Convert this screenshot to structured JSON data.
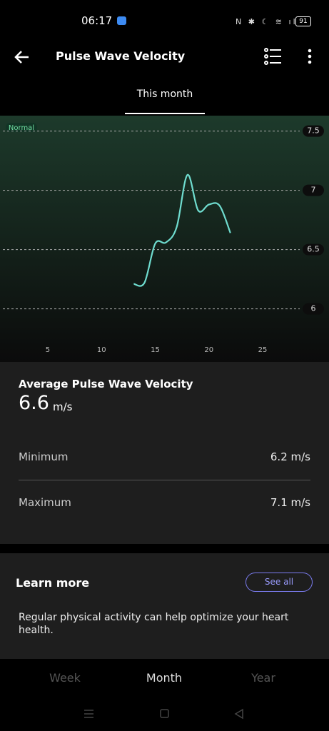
{
  "status_bar": {
    "time": "06:17",
    "battery": "91"
  },
  "header": {
    "title": "Pulse Wave Velocity"
  },
  "tab": "This month",
  "chart_data": {
    "type": "line",
    "band_label": "Normal",
    "x": [
      13,
      14,
      15,
      16,
      17,
      18,
      19,
      20,
      21,
      22
    ],
    "series": [
      {
        "color": "#6fdccf",
        "values": [
          6.21,
          6.22,
          6.55,
          6.56,
          6.69,
          7.13,
          6.83,
          6.88,
          6.87,
          6.64
        ]
      }
    ],
    "xlim": [
      0.55,
      31.18
    ],
    "xticks": [
      5,
      10,
      15,
      20,
      25
    ],
    "ylim": [
      5.6,
      7.63
    ],
    "yticks": [
      6,
      6.5,
      7,
      7.5
    ],
    "grid": true
  },
  "summary": {
    "title": "Average Pulse Wave Velocity",
    "average": "6.6",
    "unit": "m/s",
    "minimum_label": "Minimum",
    "minimum": "6.2 m/s",
    "maximum_label": "Maximum",
    "maximum": "7.1 m/s"
  },
  "learn_more": {
    "title": "Learn more",
    "button": "See all",
    "text": "Regular physical activity can help optimize your heart health."
  },
  "bottom_tabs": [
    "Week",
    "Month",
    "Year"
  ]
}
